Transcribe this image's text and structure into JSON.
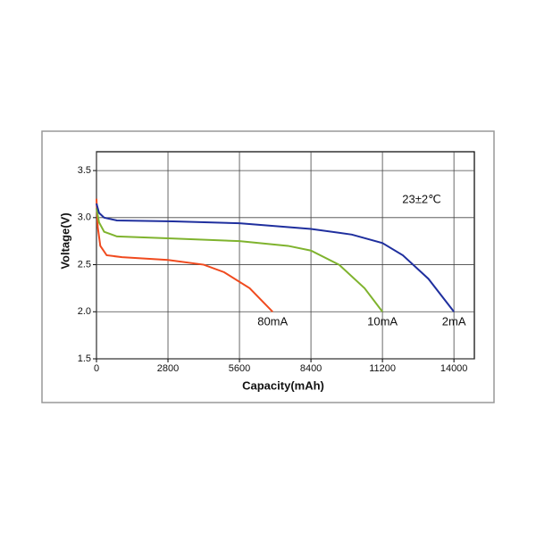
{
  "chart_data": {
    "type": "line",
    "x_label": "Capacity(mAh)",
    "y_label": "Voltage(V)",
    "annotation": "23±2℃",
    "xlim": [
      0,
      14800
    ],
    "ylim": [
      1.5,
      3.7
    ],
    "xticks": [
      0,
      2800,
      5600,
      8400,
      11200,
      14000
    ],
    "yticks": [
      1.5,
      {
        "value": 2,
        "label": "2.0"
      },
      2.5,
      {
        "value": 3,
        "label": "3.0"
      },
      3.5
    ],
    "grid": true,
    "series": [
      {
        "name": "80mA",
        "color": "#f04a1e",
        "x": [
          0,
          50,
          150,
          400,
          1000,
          2800,
          4200,
          5000,
          6000,
          6900
        ],
        "values": [
          3.2,
          2.9,
          2.7,
          2.6,
          2.58,
          2.55,
          2.5,
          2.42,
          2.25,
          2.0
        ]
      },
      {
        "name": "10mA",
        "color": "#7fb32e",
        "x": [
          0,
          100,
          300,
          800,
          2800,
          5600,
          7500,
          8400,
          9500,
          10500,
          11200
        ],
        "values": [
          3.1,
          2.95,
          2.85,
          2.8,
          2.78,
          2.75,
          2.7,
          2.65,
          2.5,
          2.25,
          2.0
        ]
      },
      {
        "name": "2mA",
        "color": "#1f2f9e",
        "x": [
          0,
          100,
          300,
          800,
          3000,
          5600,
          8400,
          10000,
          11200,
          12000,
          13000,
          14000
        ],
        "values": [
          3.15,
          3.05,
          3.0,
          2.97,
          2.96,
          2.94,
          2.88,
          2.82,
          2.73,
          2.6,
          2.35,
          2.0
        ]
      }
    ]
  }
}
